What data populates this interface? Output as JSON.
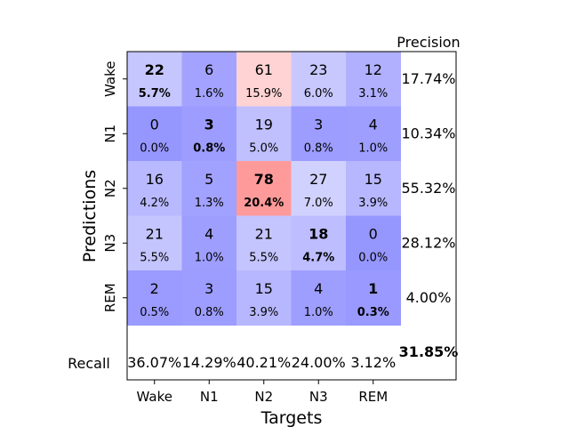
{
  "chart_data": {
    "type": "heatmap",
    "xlabel": "Targets",
    "ylabel": "Predictions",
    "x_categories": [
      "Wake",
      "N1",
      "N2",
      "N3",
      "REM"
    ],
    "y_categories": [
      "Wake",
      "N1",
      "N2",
      "N3",
      "REM"
    ],
    "counts": [
      [
        22,
        6,
        61,
        23,
        12
      ],
      [
        0,
        3,
        19,
        3,
        4
      ],
      [
        16,
        5,
        78,
        27,
        15
      ],
      [
        21,
        4,
        21,
        18,
        0
      ],
      [
        2,
        3,
        15,
        4,
        1
      ]
    ],
    "percents": [
      [
        "5.7%",
        "1.6%",
        "15.9%",
        "6.0%",
        "3.1%"
      ],
      [
        "0.0%",
        "0.8%",
        "5.0%",
        "0.8%",
        "1.0%"
      ],
      [
        "4.2%",
        "1.3%",
        "20.4%",
        "7.0%",
        "3.9%"
      ],
      [
        "5.5%",
        "1.0%",
        "5.5%",
        "4.7%",
        "0.0%"
      ],
      [
        "0.5%",
        "0.8%",
        "3.9%",
        "1.0%",
        "0.3%"
      ]
    ],
    "precision_label": "Precision",
    "precision": [
      "17.74%",
      "10.34%",
      "55.32%",
      "28.12%",
      "4.00%"
    ],
    "recall_label": "Recall",
    "recall": [
      "36.07%",
      "14.29%",
      "40.21%",
      "24.00%",
      "3.12%"
    ],
    "overall_accuracy": "31.85%",
    "colormap": "bwr"
  }
}
